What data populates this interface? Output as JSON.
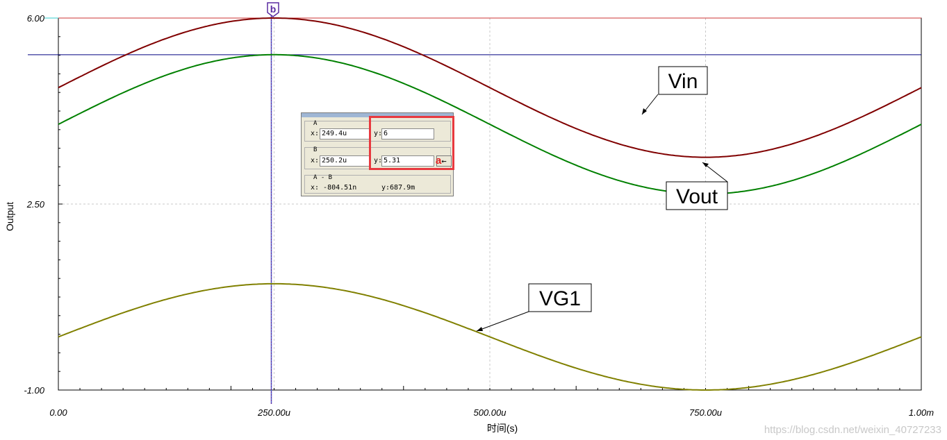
{
  "chart_data": {
    "type": "line",
    "xlabel": "时间(s)",
    "ylabel": "Output",
    "xlim": [
      0,
      0.001
    ],
    "ylim": [
      -1,
      6
    ],
    "x_ticks": [
      "0.00",
      "250.00u",
      "500.00u",
      "750.00u",
      "1.00m"
    ],
    "y_ticks": [
      "6.00",
      "2.50",
      "-1.00"
    ],
    "grid": true,
    "series": [
      {
        "name": "Vin",
        "color": "#800000",
        "offset": 4.69,
        "amplitude": 1.31,
        "x": [
          0,
          0.00025,
          0.0005,
          0.00075,
          0.001
        ],
        "y": [
          4.69,
          6.0,
          4.69,
          3.38,
          4.69
        ]
      },
      {
        "name": "Vout",
        "color": "#008000",
        "offset": 4.0,
        "amplitude": 1.31,
        "x": [
          0,
          0.00025,
          0.0005,
          0.00075,
          0.001
        ],
        "y": [
          4.0,
          5.31,
          4.0,
          2.69,
          4.0
        ]
      },
      {
        "name": "VG1",
        "color": "#808000",
        "offset": 0.0,
        "amplitude": 1.0,
        "x": [
          0,
          0.00025,
          0.0005,
          0.00075,
          0.001
        ],
        "y": [
          0.0,
          1.0,
          0.0,
          -1.0,
          0.0
        ]
      }
    ],
    "cursor_lines": {
      "horizontal": [
        6.0,
        5.31
      ],
      "vertical_x": 0.00025
    },
    "cursor_marker": "b",
    "callouts": [
      "Vin",
      "Vout",
      "VG1"
    ]
  },
  "cursor_panel": {
    "group_a": "A",
    "group_b": "B",
    "group_diff": "A - B",
    "x_label": "x:",
    "y_label": "y:",
    "a_x": "249.4u",
    "a_y": "6",
    "b_x": "250.2u",
    "b_y": "5.31",
    "diff_x": "x: -804.51n",
    "diff_y": "y:687.9m",
    "swap_symbol": "←",
    "annotation": "a"
  },
  "watermark": "https://blog.csdn.net/weixin_40727233",
  "colors": {
    "grid": "#c8c8c8",
    "highlight": "#e8393f",
    "cursor_line": "#5a2ca0"
  }
}
